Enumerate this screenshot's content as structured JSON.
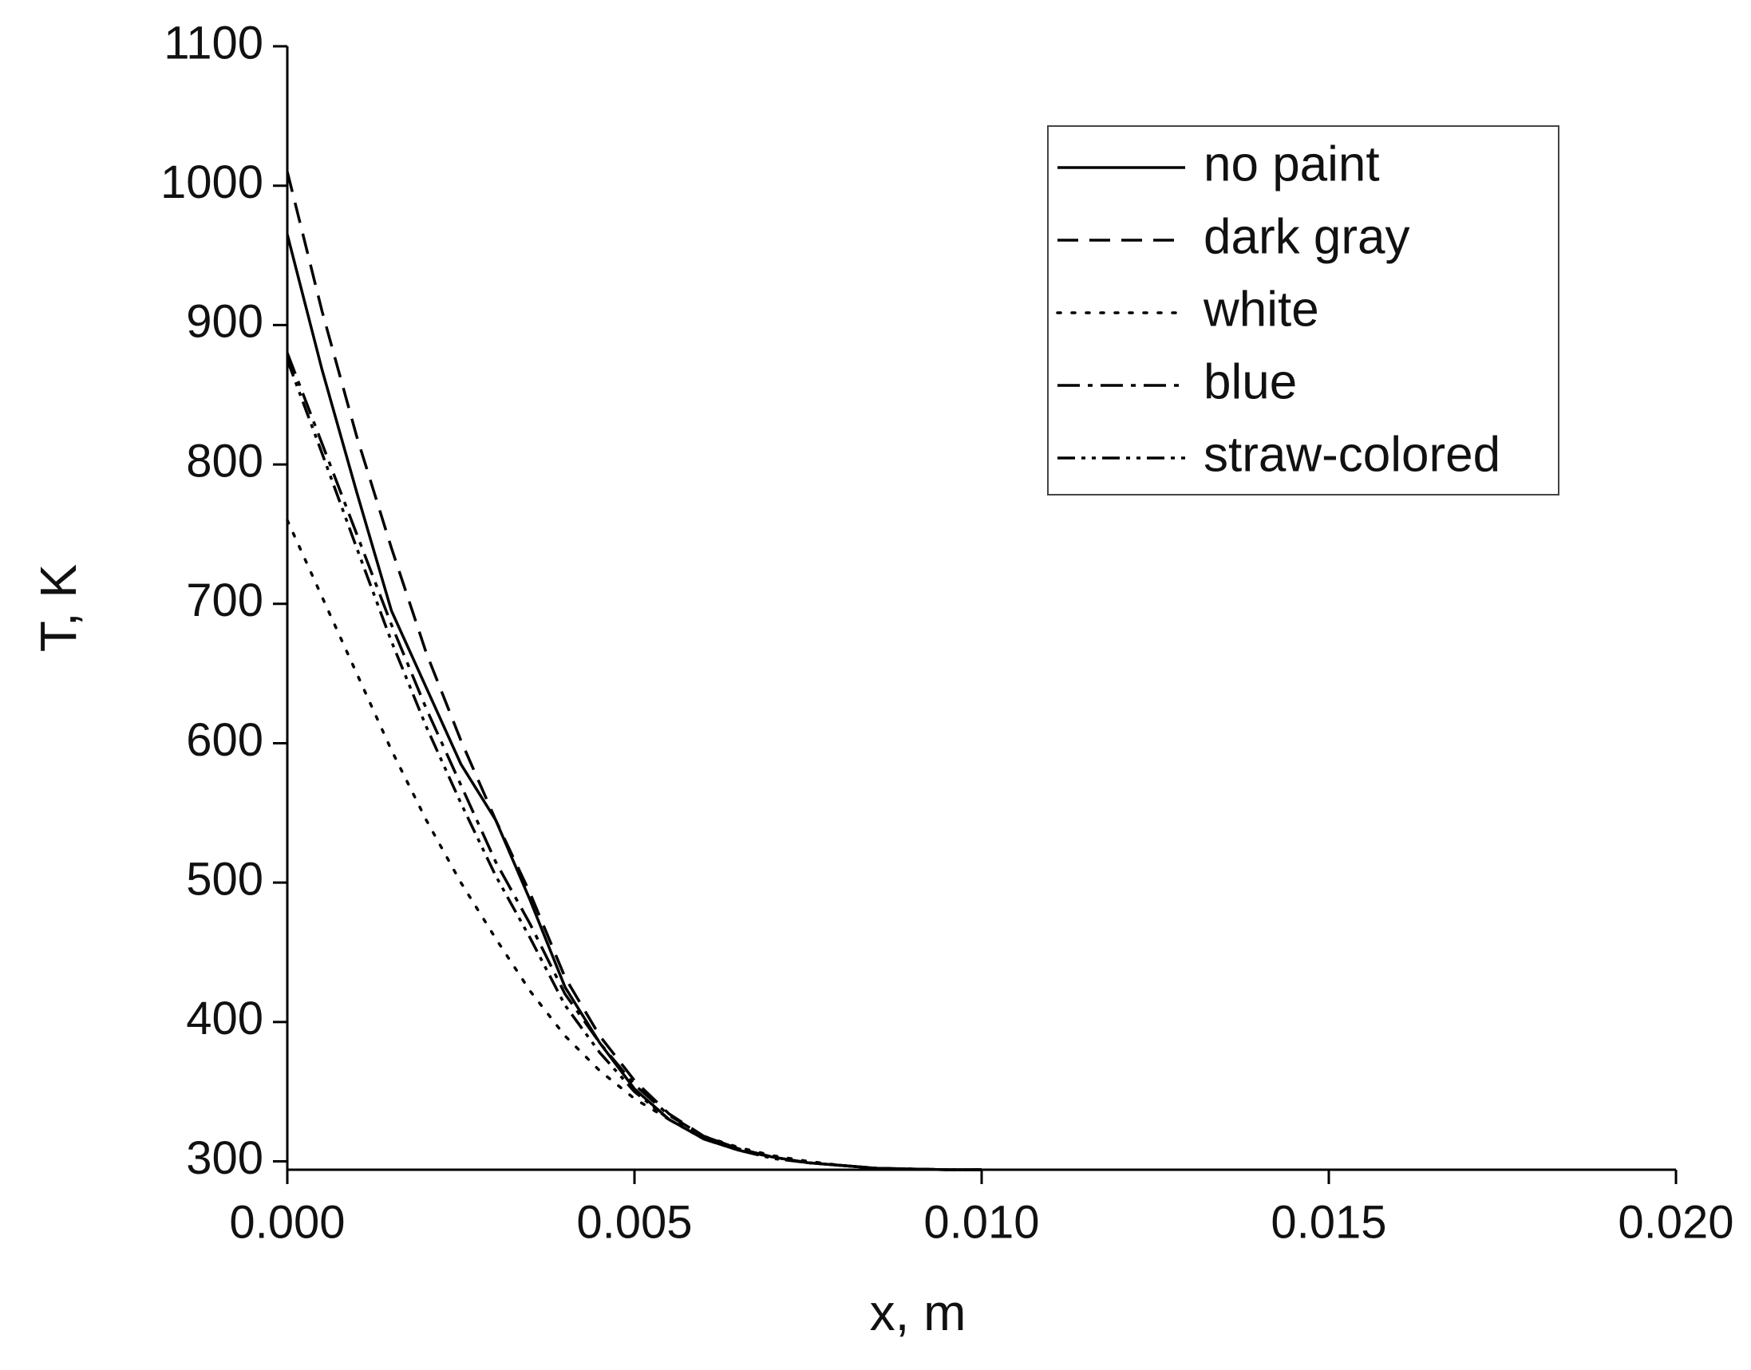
{
  "chart_data": {
    "type": "line",
    "x_label": "x, m",
    "y_label": "T, K",
    "x": [
      0,
      0.0005,
      0.001,
      0.0015,
      0.002,
      0.0025,
      0.003,
      0.0035,
      0.004,
      0.0045,
      0.005,
      0.0055,
      0.006,
      0.0065,
      0.007,
      0.0075,
      0.008,
      0.0085,
      0.009,
      0.0095,
      0.01
    ],
    "series": [
      {
        "name": "no paint",
        "color": "#000000",
        "dash": "solid",
        "values": [
          965,
          868,
          780,
          695,
          640,
          585,
          545,
          487,
          425,
          385,
          352,
          330,
          316,
          308,
          303,
          299,
          297,
          295,
          294.5,
          294,
          294
        ]
      },
      {
        "name": "dark gray",
        "color": "#000000",
        "dash": "dash",
        "values": [
          1010,
          910,
          820,
          740,
          665,
          602,
          545,
          492,
          432,
          390,
          358,
          334,
          318,
          309,
          303,
          299,
          297,
          295,
          294.5,
          294,
          294
        ]
      },
      {
        "name": "white",
        "color": "#000000",
        "dash": "dot",
        "values": [
          760,
          705,
          650,
          595,
          545,
          500,
          460,
          422,
          390,
          365,
          345,
          330,
          318,
          310,
          304,
          300,
          297,
          295,
          294.5,
          294,
          294
        ]
      },
      {
        "name": "blue",
        "color": "#000000",
        "dash": "dashdot",
        "values": [
          880,
          815,
          750,
          685,
          625,
          570,
          515,
          470,
          420,
          385,
          355,
          333,
          318,
          309,
          303,
          299,
          297,
          295,
          294.5,
          294,
          294
        ]
      },
      {
        "name": "straw-colored",
        "color": "#000000",
        "dash": "dashdotdot",
        "values": [
          875,
          808,
          740,
          673,
          612,
          557,
          505,
          460,
          412,
          378,
          350,
          330,
          316,
          308,
          302,
          299,
          297,
          295,
          294.5,
          294,
          294
        ]
      }
    ],
    "xlim": [
      0,
      0.02
    ],
    "ylim": [
      294,
      1100
    ],
    "xticks": [
      {
        "value": 0,
        "label": "0.000"
      },
      {
        "value": 0.005,
        "label": "0.005"
      },
      {
        "value": 0.01,
        "label": "0.010"
      },
      {
        "value": 0.015,
        "label": "0.015"
      },
      {
        "value": 0.02,
        "label": "0.020"
      }
    ],
    "yticks": [
      300,
      400,
      500,
      600,
      700,
      800,
      900,
      1000,
      1100
    ],
    "grid": false,
    "legend": "upper right"
  }
}
